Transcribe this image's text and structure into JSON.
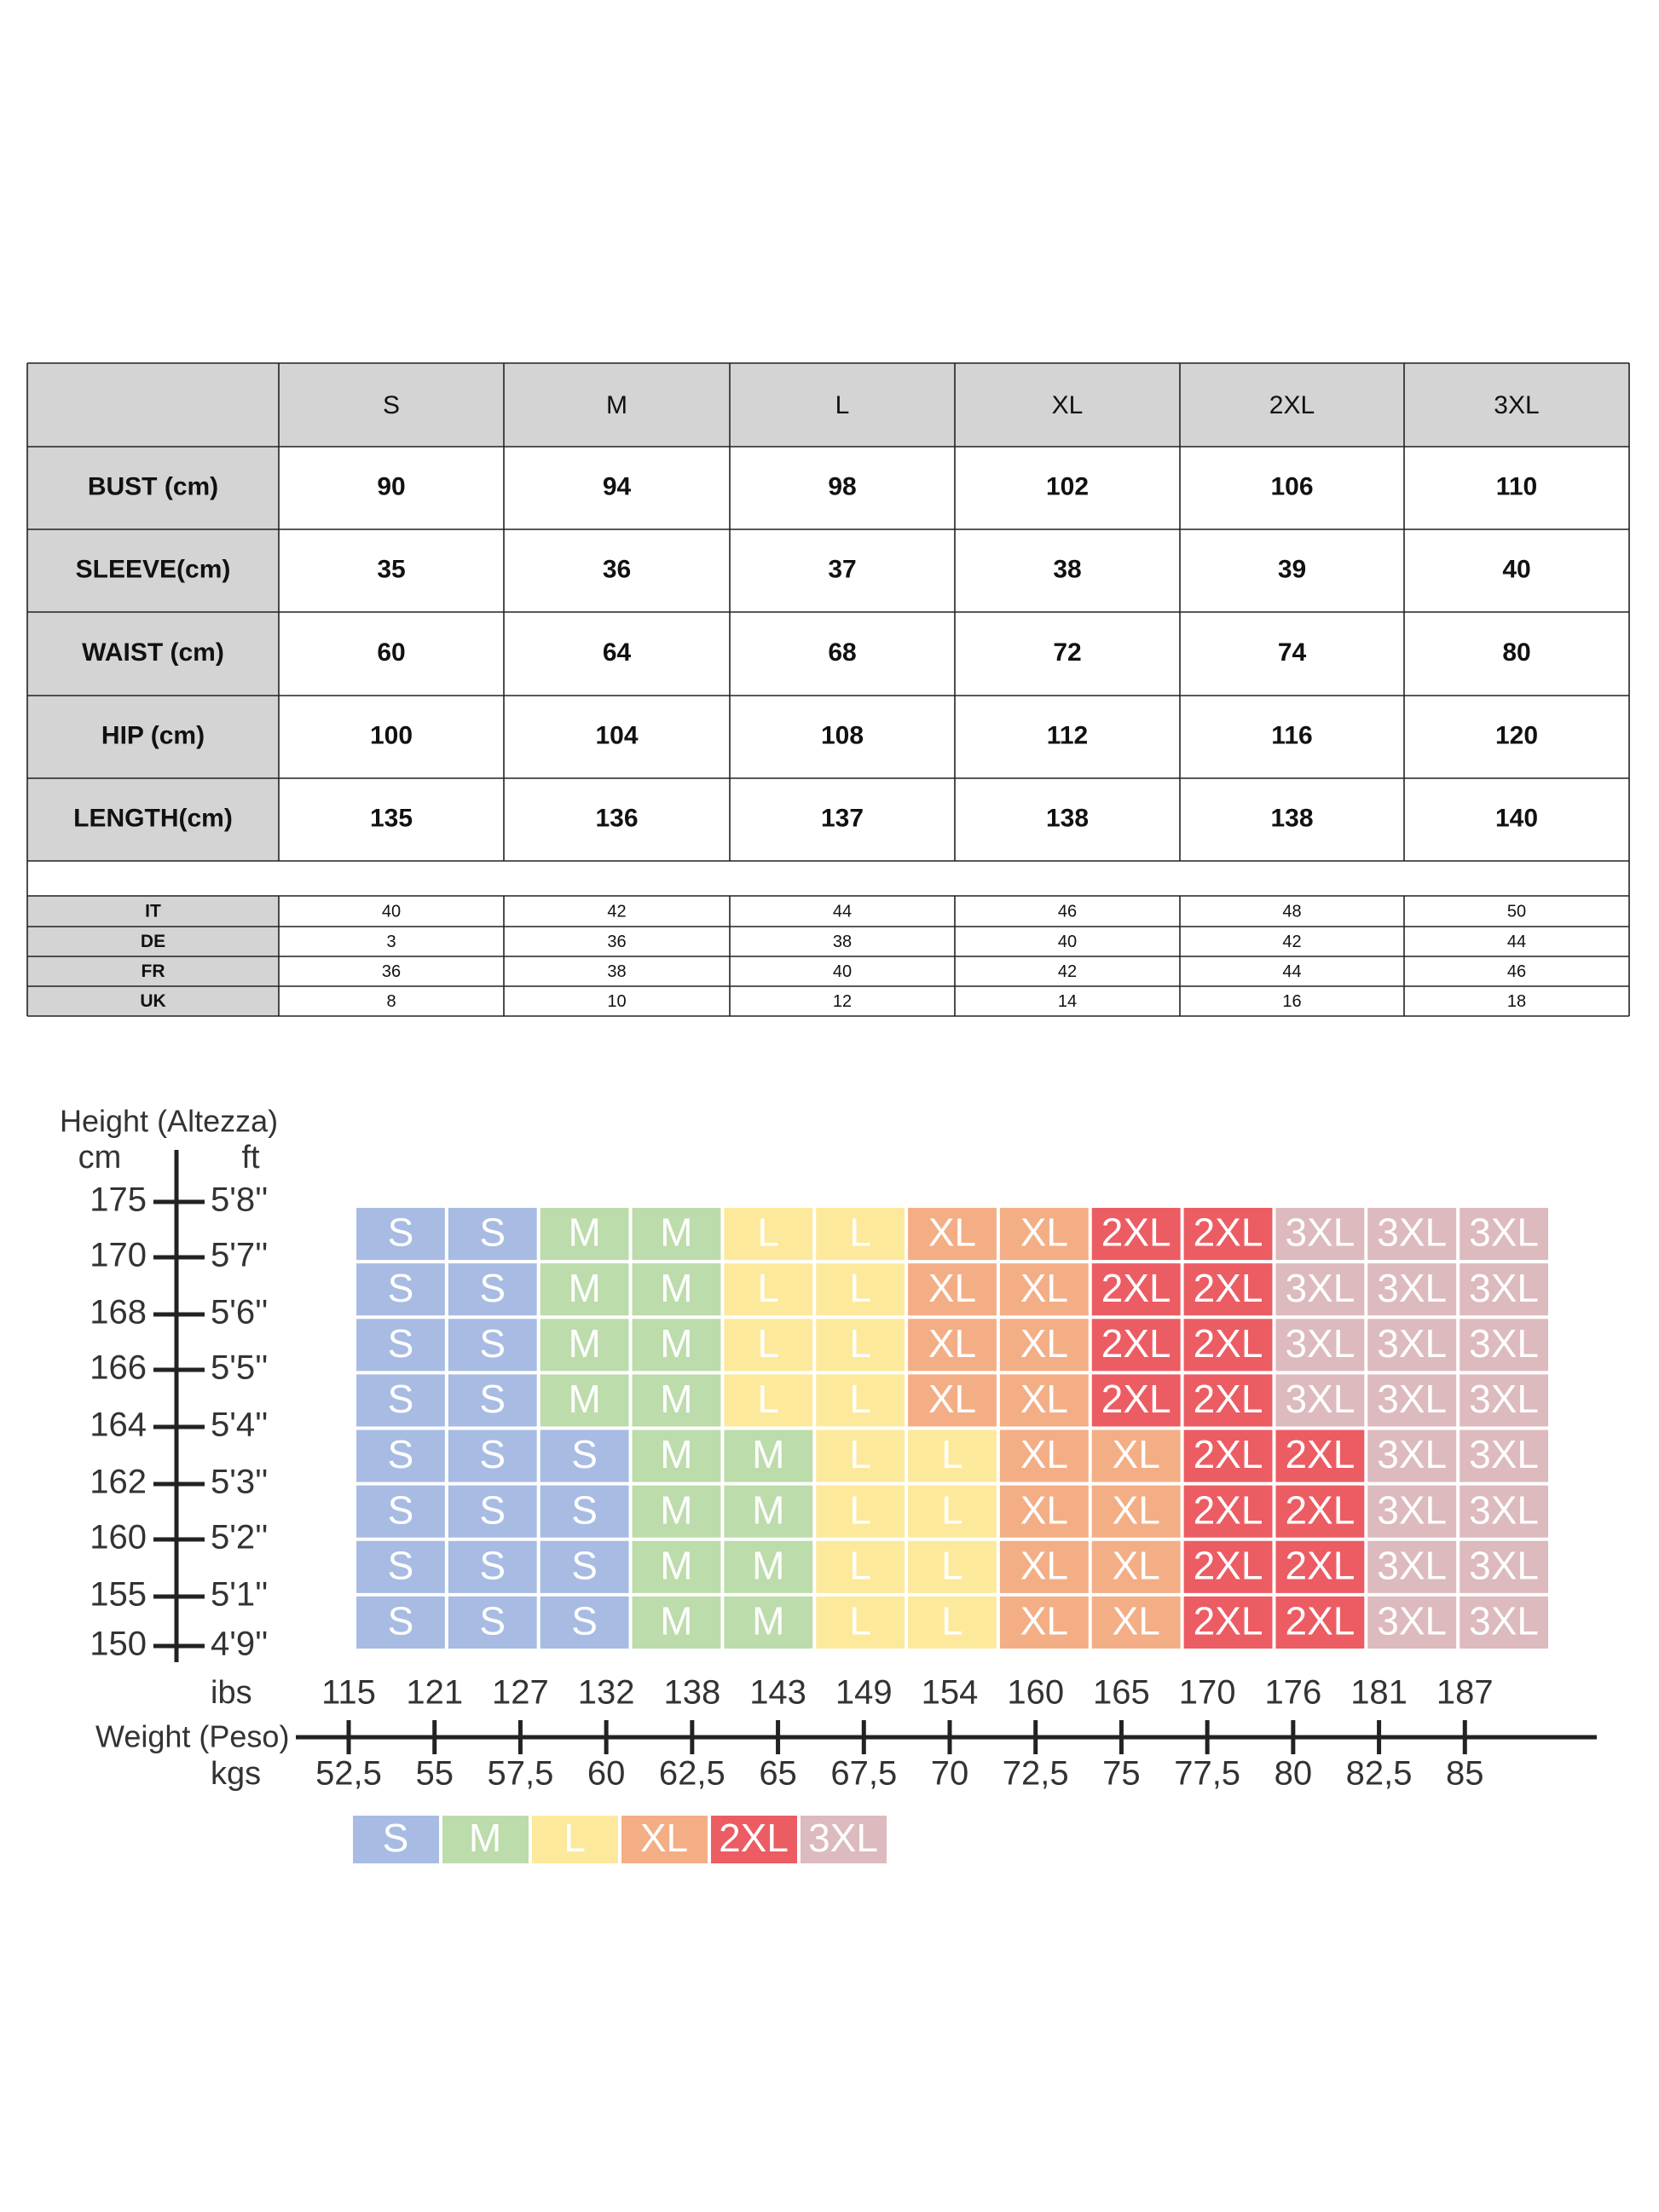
{
  "table": {
    "columns": [
      "S",
      "M",
      "L",
      "XL",
      "2XL",
      "3XL"
    ],
    "rows": [
      {
        "label": "BUST (cm)",
        "values": [
          90,
          94,
          98,
          102,
          106,
          110
        ]
      },
      {
        "label": "SLEEVE(cm)",
        "values": [
          35,
          36,
          37,
          38,
          39,
          40
        ]
      },
      {
        "label": "WAIST (cm)",
        "values": [
          60,
          64,
          68,
          72,
          74,
          80
        ]
      },
      {
        "label": "HIP (cm)",
        "values": [
          100,
          104,
          108,
          112,
          116,
          120
        ]
      },
      {
        "label": "LENGTH(cm)",
        "values": [
          135,
          136,
          137,
          138,
          138,
          140
        ]
      }
    ],
    "conversion": [
      {
        "label": "IT",
        "values": [
          40,
          42,
          44,
          46,
          48,
          50
        ]
      },
      {
        "label": "DE",
        "values": [
          3,
          36,
          38,
          40,
          42,
          44
        ]
      },
      {
        "label": "FR",
        "values": [
          36,
          38,
          40,
          42,
          44,
          46
        ]
      },
      {
        "label": "UK",
        "values": [
          8,
          10,
          12,
          14,
          16,
          18
        ]
      }
    ]
  },
  "fit_chart": {
    "height_title": "Height (Altezza)",
    "cm_label": "cm",
    "ft_label": "ft",
    "heights": [
      {
        "cm": 175,
        "ft": "5'8''"
      },
      {
        "cm": 170,
        "ft": "5'7''"
      },
      {
        "cm": 168,
        "ft": "5'6''"
      },
      {
        "cm": 166,
        "ft": "5'5''"
      },
      {
        "cm": 164,
        "ft": "5'4''"
      },
      {
        "cm": 162,
        "ft": "5'3''"
      },
      {
        "cm": 160,
        "ft": "5'2''"
      },
      {
        "cm": 155,
        "ft": "5'1''"
      },
      {
        "cm": 150,
        "ft": "4'9''"
      }
    ],
    "weight_title": "Weight (Peso)",
    "lbs_label": "ibs",
    "kgs_label": "kgs",
    "lbs": [
      115,
      121,
      127,
      132,
      138,
      143,
      149,
      154,
      160,
      165,
      170,
      176,
      181,
      187
    ],
    "kgs": [
      "52,5",
      "55",
      "57,5",
      "60",
      "62,5",
      "65",
      "67,5",
      "70",
      "72,5",
      "75",
      "77,5",
      "80",
      "82,5",
      "85"
    ],
    "sizes": [
      {
        "name": "S",
        "color": "#a7bbe3"
      },
      {
        "name": "M",
        "color": "#bcdcab"
      },
      {
        "name": "L",
        "color": "#fde99c"
      },
      {
        "name": "XL",
        "color": "#f3ae86"
      },
      {
        "name": "2XL",
        "color": "#ec5c63"
      },
      {
        "name": "3XL",
        "color": "#dcbabe"
      }
    ],
    "grid": [
      [
        "S",
        "S",
        "M",
        "M",
        "L",
        "L",
        "XL",
        "XL",
        "2XL",
        "2XL",
        "3XL",
        "3XL",
        "3XL"
      ],
      [
        "S",
        "S",
        "M",
        "M",
        "L",
        "L",
        "XL",
        "XL",
        "2XL",
        "2XL",
        "3XL",
        "3XL",
        "3XL"
      ],
      [
        "S",
        "S",
        "M",
        "M",
        "L",
        "L",
        "XL",
        "XL",
        "2XL",
        "2XL",
        "3XL",
        "3XL",
        "3XL"
      ],
      [
        "S",
        "S",
        "M",
        "M",
        "L",
        "L",
        "XL",
        "XL",
        "2XL",
        "2XL",
        "3XL",
        "3XL",
        "3XL"
      ],
      [
        "S",
        "S",
        "S",
        "M",
        "M",
        "L",
        "L",
        "XL",
        "XL",
        "2XL",
        "2XL",
        "3XL",
        "3XL"
      ],
      [
        "S",
        "S",
        "S",
        "M",
        "M",
        "L",
        "L",
        "XL",
        "XL",
        "2XL",
        "2XL",
        "3XL",
        "3XL"
      ],
      [
        "S",
        "S",
        "S",
        "M",
        "M",
        "L",
        "L",
        "XL",
        "XL",
        "2XL",
        "2XL",
        "3XL",
        "3XL"
      ],
      [
        "S",
        "S",
        "S",
        "M",
        "M",
        "L",
        "L",
        "XL",
        "XL",
        "2XL",
        "2XL",
        "3XL",
        "3XL"
      ]
    ]
  }
}
